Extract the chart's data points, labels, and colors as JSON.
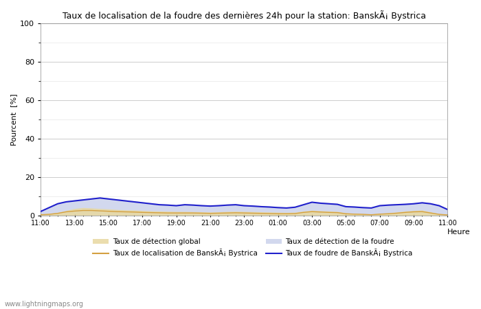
{
  "title": "Taux de localisation de la foudre des dernières 24h pour la station: BanskÃ¡ Bystrica",
  "ylabel": "Pourcent  [%]",
  "xlabel_right": "Heure",
  "watermark": "www.lightningmaps.org",
  "xlim": [
    0,
    48
  ],
  "ylim": [
    0,
    100
  ],
  "yticks": [
    0,
    20,
    40,
    60,
    80,
    100
  ],
  "ytick_minor": [
    10,
    30,
    50,
    70,
    90
  ],
  "xtick_labels": [
    "11:00",
    "13:00",
    "15:00",
    "17:00",
    "19:00",
    "21:00",
    "23:00",
    "01:00",
    "03:00",
    "05:00",
    "07:00",
    "09:00",
    "11:00"
  ],
  "xtick_positions": [
    0,
    4,
    8,
    12,
    16,
    20,
    24,
    28,
    32,
    36,
    40,
    44,
    48
  ],
  "bg_color": "#ffffff",
  "plot_bg_color": "#ffffff",
  "grid_color": "#cccccc",
  "legend_row1": [
    {
      "label": "Taux de détection global",
      "type": "fill",
      "color": "#e8d8a0"
    },
    {
      "label": "Taux de localisation de BanskÃ¡ Bystrica",
      "type": "line",
      "color": "#d4a040"
    }
  ],
  "legend_row2": [
    {
      "label": "Taux de détection de la foudre",
      "type": "fill",
      "color": "#c0c8e8"
    },
    {
      "label": "Taux de foudre de BanskÃ¡ Bystrica",
      "type": "line",
      "color": "#2020cc"
    }
  ],
  "global_detection": [
    0.5,
    1.0,
    1.5,
    2.5,
    3.5,
    4.0,
    3.8,
    3.5,
    3.3,
    3.0,
    2.8,
    2.7,
    2.5,
    2.3,
    2.2,
    2.1,
    2.0,
    2.0,
    1.9,
    1.8,
    1.7,
    1.8,
    2.0,
    2.1,
    2.0,
    1.9,
    1.8,
    1.7,
    1.6,
    1.5,
    1.6,
    2.2,
    2.6,
    2.4,
    2.2,
    2.0,
    1.3,
    1.0,
    0.8,
    0.6,
    1.0,
    1.3,
    1.7,
    2.2,
    2.5,
    2.7,
    1.8,
    0.8,
    0.4
  ],
  "lightning_detection": [
    2.5,
    4.5,
    6.5,
    7.5,
    8.0,
    8.5,
    9.0,
    9.5,
    9.0,
    8.5,
    8.0,
    7.5,
    7.0,
    6.5,
    6.0,
    5.8,
    5.5,
    6.0,
    5.8,
    5.5,
    5.2,
    5.5,
    5.8,
    6.0,
    5.5,
    5.2,
    5.0,
    4.8,
    4.5,
    4.2,
    4.5,
    6.0,
    7.2,
    6.8,
    6.5,
    6.2,
    5.0,
    4.8,
    4.5,
    4.2,
    5.5,
    5.8,
    6.0,
    6.2,
    6.5,
    7.0,
    6.5,
    5.5,
    3.5
  ],
  "station_localization": [
    0.3,
    0.5,
    1.0,
    1.8,
    2.2,
    2.5,
    2.5,
    2.3,
    2.1,
    1.9,
    1.8,
    1.7,
    1.5,
    1.4,
    1.3,
    1.2,
    1.2,
    1.2,
    1.2,
    1.1,
    1.0,
    1.1,
    1.2,
    1.3,
    1.2,
    1.1,
    1.0,
    0.9,
    0.8,
    0.8,
    0.9,
    1.5,
    1.9,
    1.7,
    1.5,
    1.4,
    0.8,
    0.6,
    0.5,
    0.3,
    0.6,
    0.8,
    1.1,
    1.5,
    1.8,
    1.9,
    1.2,
    0.5,
    0.2
  ],
  "station_foudre": [
    2.0,
    4.0,
    6.0,
    7.0,
    7.5,
    8.0,
    8.5,
    9.0,
    8.5,
    8.0,
    7.5,
    7.0,
    6.5,
    6.0,
    5.5,
    5.3,
    5.0,
    5.5,
    5.3,
    5.0,
    4.8,
    5.0,
    5.3,
    5.5,
    5.0,
    4.8,
    4.5,
    4.3,
    4.0,
    3.8,
    4.2,
    5.5,
    6.8,
    6.3,
    6.0,
    5.7,
    4.5,
    4.3,
    4.0,
    3.8,
    5.0,
    5.3,
    5.5,
    5.7,
    6.0,
    6.5,
    6.0,
    5.0,
    3.0
  ]
}
